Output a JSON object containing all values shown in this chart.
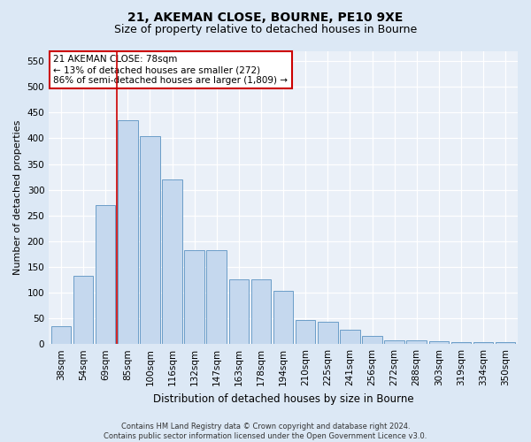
{
  "title1": "21, AKEMAN CLOSE, BOURNE, PE10 9XE",
  "title2": "Size of property relative to detached houses in Bourne",
  "xlabel": "Distribution of detached houses by size in Bourne",
  "ylabel": "Number of detached properties",
  "categories": [
    "38sqm",
    "54sqm",
    "69sqm",
    "85sqm",
    "100sqm",
    "116sqm",
    "132sqm",
    "147sqm",
    "163sqm",
    "178sqm",
    "194sqm",
    "210sqm",
    "225sqm",
    "241sqm",
    "256sqm",
    "272sqm",
    "288sqm",
    "303sqm",
    "319sqm",
    "334sqm",
    "350sqm"
  ],
  "values": [
    35,
    133,
    270,
    435,
    405,
    320,
    183,
    183,
    126,
    126,
    104,
    46,
    44,
    28,
    16,
    7,
    8,
    5,
    4,
    3,
    4
  ],
  "bar_color": "#c5d8ee",
  "bar_edge_color": "#6b9dc8",
  "highlight_bar_index": 3,
  "highlight_line_color": "#cc0000",
  "annotation_title": "21 AKEMAN CLOSE: 78sqm",
  "annotation_line2": "← 13% of detached houses are smaller (272)",
  "annotation_line3": "86% of semi-detached houses are larger (1,809) →",
  "annotation_box_facecolor": "#ffffff",
  "annotation_box_edgecolor": "#cc0000",
  "yticks": [
    0,
    50,
    100,
    150,
    200,
    250,
    300,
    350,
    400,
    450,
    500,
    550
  ],
  "ylim": [
    0,
    570
  ],
  "footer1": "Contains HM Land Registry data © Crown copyright and database right 2024.",
  "footer2": "Contains public sector information licensed under the Open Government Licence v3.0.",
  "bg_color": "#dce8f5",
  "plot_bg_color": "#eaf0f8",
  "grid_color": "#ffffff",
  "title1_fontsize": 10,
  "title2_fontsize": 9,
  "ylabel_fontsize": 8,
  "xlabel_fontsize": 8.5,
  "tick_fontsize": 7.5,
  "annotation_fontsize": 7.5,
  "footer_fontsize": 6
}
